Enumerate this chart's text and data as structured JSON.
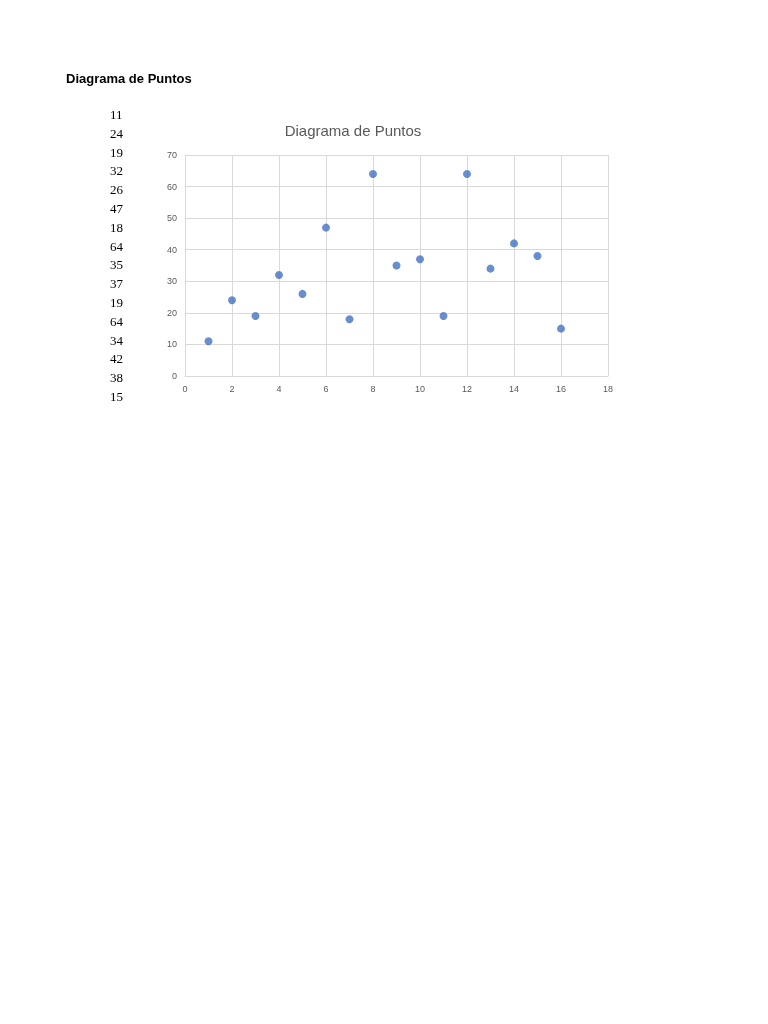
{
  "chart_data": {
    "type": "scatter",
    "title": "Diagrama de Puntos",
    "annotations": [
      "Diagrama de Puntos",
      "11",
      "24",
      "19",
      "32",
      "26",
      "47",
      "18",
      "64",
      "35",
      "37",
      "19",
      "64",
      "34",
      "42",
      "38",
      "15"
    ],
    "x": [
      1,
      2,
      3,
      4,
      5,
      6,
      7,
      8,
      9,
      10,
      11,
      12,
      13,
      14,
      15,
      16
    ],
    "values": [
      11,
      24,
      19,
      32,
      26,
      47,
      18,
      64,
      35,
      37,
      19,
      64,
      34,
      42,
      38,
      15
    ],
    "color": "#4472c4",
    "xlim": [
      0,
      18
    ],
    "xticks": [
      0,
      2,
      4,
      6,
      8,
      10,
      12,
      14,
      16,
      18
    ],
    "ylim": [
      0,
      70
    ],
    "yticks": [
      0,
      10,
      20,
      30,
      40,
      50,
      60,
      70
    ],
    "grid": true,
    "marker": "circle"
  }
}
